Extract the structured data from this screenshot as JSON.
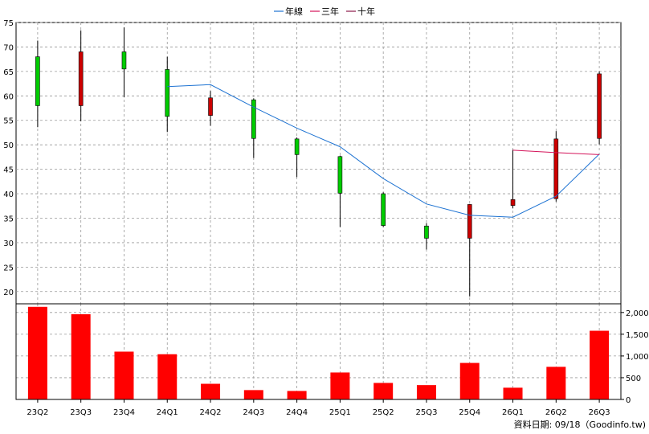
{
  "legend": [
    {
      "label": "年線",
      "color": "#1e73d2"
    },
    {
      "label": "三年",
      "color": "#d4145a"
    },
    {
      "label": "十年",
      "color": "#8b1a4a"
    }
  ],
  "footer": "資料日期: 09/18（Goodinfo.tw)",
  "chart_data": [
    {
      "type": "candlestick",
      "categories": [
        "23Q2",
        "23Q3",
        "23Q4",
        "24Q1",
        "24Q2",
        "24Q3",
        "24Q4",
        "25Q1",
        "25Q2",
        "25Q3",
        "25Q4",
        "26Q1",
        "26Q2",
        "26Q3"
      ],
      "ohlc": [
        {
          "open": 58,
          "high": 71.3,
          "low": 53.6,
          "close": 68,
          "color": "#00cc00"
        },
        {
          "open": 69,
          "high": 73.4,
          "low": 54.8,
          "close": 58,
          "color": "#cc0000"
        },
        {
          "open": 65.5,
          "high": 74,
          "low": 59.7,
          "close": 69,
          "color": "#00cc00"
        },
        {
          "open": 55.8,
          "high": 68,
          "low": 52.6,
          "close": 65.4,
          "color": "#00cc00"
        },
        {
          "open": 59.6,
          "high": 61,
          "low": 53.9,
          "close": 56,
          "color": "#cc0000"
        },
        {
          "open": 51.3,
          "high": 59.5,
          "low": 47.3,
          "close": 59.2,
          "color": "#00cc00"
        },
        {
          "open": 48,
          "high": 51.5,
          "low": 43.4,
          "close": 51.2,
          "color": "#00cc00"
        },
        {
          "open": 40.1,
          "high": 47.8,
          "low": 33.2,
          "close": 47.6,
          "color": "#00cc00"
        },
        {
          "open": 33.5,
          "high": 40.3,
          "low": 33.2,
          "close": 40,
          "color": "#00cc00"
        },
        {
          "open": 30.9,
          "high": 34,
          "low": 28.6,
          "close": 33.4,
          "color": "#00cc00"
        },
        {
          "open": 37.8,
          "high": 37.9,
          "low": 19,
          "close": 30.9,
          "color": "#cc0000"
        },
        {
          "open": 38.8,
          "high": 49,
          "low": 37,
          "close": 37.6,
          "color": "#cc0000"
        },
        {
          "open": 51.2,
          "high": 52.8,
          "low": 38.4,
          "close": 39,
          "color": "#cc0000"
        },
        {
          "open": 64.5,
          "high": 65,
          "low": 50.1,
          "close": 51.3,
          "color": "#cc0000"
        }
      ],
      "lines": [
        {
          "name": "年線",
          "color": "#1e73d2",
          "values": [
            null,
            null,
            null,
            61.9,
            62.3,
            57.7,
            53.4,
            49.6,
            43.1,
            37.9,
            35.6,
            35.2,
            39.5,
            48.1
          ]
        },
        {
          "name": "三年",
          "color": "#d4145a",
          "values": [
            null,
            null,
            null,
            null,
            null,
            null,
            null,
            null,
            null,
            null,
            null,
            48.9,
            48.4,
            48.0
          ]
        }
      ],
      "yticks": [
        20,
        25,
        30,
        35,
        40,
        45,
        50,
        55,
        60,
        65,
        70,
        75
      ],
      "ylim": [
        17.5,
        75
      ],
      "grid": true
    },
    {
      "type": "bar",
      "categories": [
        "23Q2",
        "23Q3",
        "23Q4",
        "24Q1",
        "24Q2",
        "24Q3",
        "24Q4",
        "25Q1",
        "25Q2",
        "25Q3",
        "25Q4",
        "26Q1",
        "26Q2",
        "26Q3"
      ],
      "values": [
        2130,
        1960,
        1100,
        1040,
        360,
        215,
        195,
        620,
        380,
        330,
        840,
        270,
        750,
        1580
      ],
      "color": "#ff0000",
      "yticks": [
        "0",
        "500",
        "1,000",
        "1,500",
        "2,000"
      ],
      "ytick_values": [
        0,
        500,
        1000,
        1500,
        2000
      ],
      "ylim": [
        0,
        2200
      ],
      "grid": true
    }
  ]
}
